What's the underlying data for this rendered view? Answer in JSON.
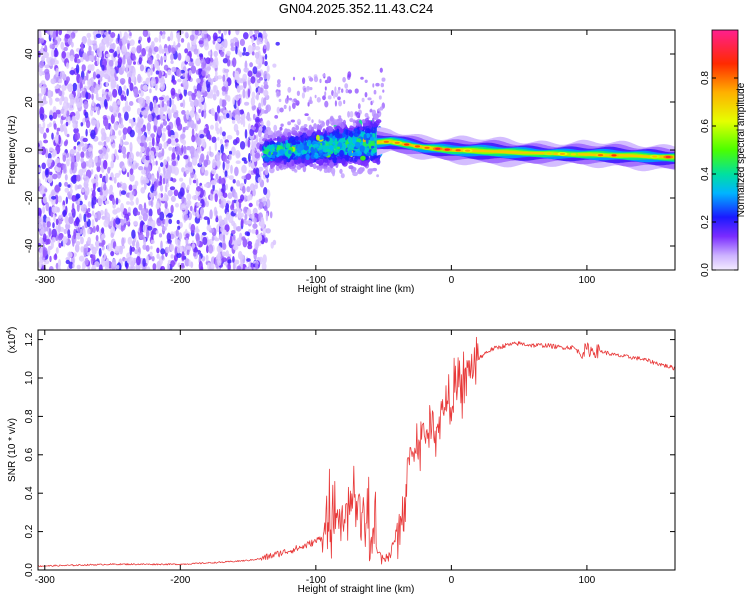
{
  "title": "GN04.2025.352.11.43.C24",
  "chart_data": [
    {
      "type": "heatmap",
      "xlabel": "Height of straight line (km)",
      "ylabel": "Frequency (Hz)",
      "xlim": [
        -305,
        165
      ],
      "ylim": [
        -50,
        50
      ],
      "x_ticks": [
        -300,
        -200,
        -100,
        0,
        100
      ],
      "y_ticks": [
        -40,
        -20,
        0,
        20,
        40
      ],
      "colorbar": {
        "label": "Normalized spectral amplitude",
        "range": [
          0,
          1
        ],
        "ticks": [
          "0.0",
          "0.2",
          "0.4",
          "0.6",
          "0.8"
        ]
      },
      "ridge": [
        {
          "x": -140,
          "y": -1
        },
        {
          "x": -100,
          "y": 1
        },
        {
          "x": -60,
          "y": 3
        },
        {
          "x": -45,
          "y": 3.5
        },
        {
          "x": -20,
          "y": 1
        },
        {
          "x": 0,
          "y": 0
        },
        {
          "x": 50,
          "y": -1
        },
        {
          "x": 100,
          "y": -2
        },
        {
          "x": 140,
          "y": -2.5
        },
        {
          "x": 165,
          "y": -3
        }
      ]
    },
    {
      "type": "line",
      "xlabel": "Height of straight line (km)",
      "ylabel": "SNR (10 * v/v)",
      "y_multiplier_base": "(x10",
      "y_multiplier_exp": "4",
      "y_multiplier_end": ")",
      "xlim": [
        -305,
        165
      ],
      "ylim": [
        0,
        1.25
      ],
      "x_ticks": [
        -300,
        -200,
        -100,
        0,
        100
      ],
      "y_ticks": [
        "0.0",
        "0.2",
        "0.4",
        "0.6",
        "0.8",
        "1.0",
        "1.2"
      ],
      "color": "#e83a3a",
      "series": [
        {
          "x": [
            -305,
            -250,
            -200,
            -170,
            -150,
            -140,
            -130,
            -120,
            -110,
            -100,
            -90,
            -85,
            -80,
            -75,
            -72,
            -68,
            -65,
            -62,
            -58,
            -55,
            -50,
            -45,
            -40,
            -35,
            -32,
            -30,
            -25,
            -20,
            -15,
            -10,
            -5,
            0,
            5,
            10,
            15,
            20,
            25,
            30,
            40,
            50,
            60,
            70,
            80,
            90,
            95,
            100,
            105,
            110,
            120,
            130,
            140,
            150,
            165
          ],
          "y": [
            0.02,
            0.03,
            0.03,
            0.04,
            0.05,
            0.06,
            0.08,
            0.1,
            0.12,
            0.15,
            0.2,
            0.22,
            0.28,
            0.35,
            0.38,
            0.33,
            0.3,
            0.22,
            0.15,
            0.1,
            0.06,
            0.08,
            0.2,
            0.3,
            0.55,
            0.6,
            0.65,
            0.7,
            0.72,
            0.75,
            0.85,
            0.9,
            0.95,
            1.0,
            1.05,
            1.1,
            1.13,
            1.15,
            1.17,
            1.18,
            1.17,
            1.17,
            1.16,
            1.16,
            1.13,
            1.15,
            1.14,
            1.14,
            1.12,
            1.11,
            1.1,
            1.08,
            1.05
          ]
        }
      ]
    }
  ]
}
